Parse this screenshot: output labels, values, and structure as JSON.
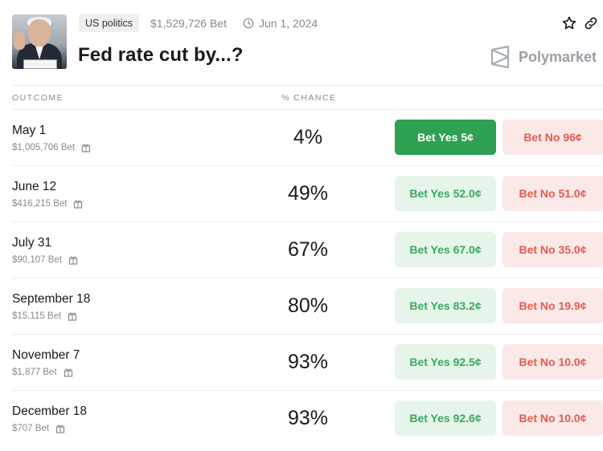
{
  "market": {
    "tag": "US politics",
    "volume": "$1,529,726 Bet",
    "date": "Jun 1, 2024",
    "title": "Fed rate cut by...?",
    "brand": "Polymarket"
  },
  "table": {
    "headers": {
      "outcome": "OUTCOME",
      "chance": "% CHANCE"
    },
    "rows": [
      {
        "label": "May 1",
        "bet": "$1,005,706 Bet",
        "chance": "4%",
        "yes": "Bet Yes 5¢",
        "no": "Bet No 96¢"
      },
      {
        "label": "June 12",
        "bet": "$416,215 Bet",
        "chance": "49%",
        "yes": "Bet Yes 52.0¢",
        "no": "Bet No 51.0¢"
      },
      {
        "label": "July 31",
        "bet": "$90,107 Bet",
        "chance": "67%",
        "yes": "Bet Yes 67.0¢",
        "no": "Bet No 35.0¢"
      },
      {
        "label": "September 18",
        "bet": "$15,115 Bet",
        "chance": "80%",
        "yes": "Bet Yes 83.2¢",
        "no": "Bet No 19.9¢"
      },
      {
        "label": "November 7",
        "bet": "$1,877 Bet",
        "chance": "93%",
        "yes": "Bet Yes 92.5¢",
        "no": "Bet No 10.0¢"
      },
      {
        "label": "December 18",
        "bet": "$707 Bet",
        "chance": "93%",
        "yes": "Bet Yes 92.6¢",
        "no": "Bet No 10.0¢"
      }
    ]
  },
  "colors": {
    "yes_active": "#2ea152",
    "yes_soft": "#e6f5ea",
    "no_soft": "#fbe9e7",
    "no_text": "#e25c4f"
  },
  "icons": [
    "star-icon",
    "link-icon",
    "clock-icon",
    "gift-icon",
    "polymarket-logo-icon"
  ]
}
